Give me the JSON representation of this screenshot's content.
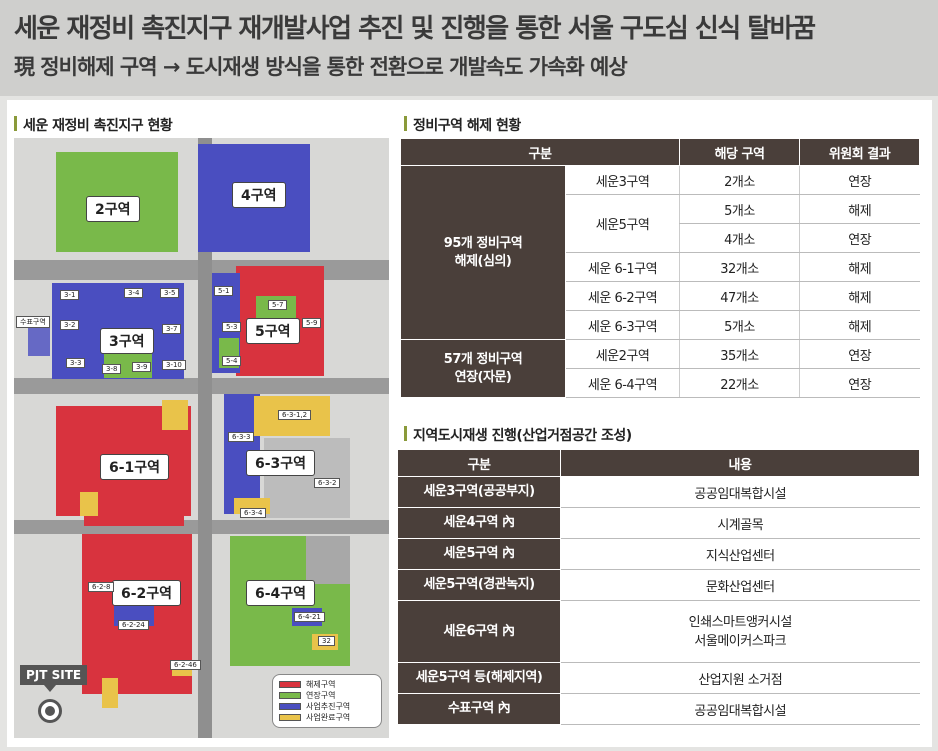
{
  "header": {
    "line1": "세운 재정비 촉진지구 재개발사업 추진 및 진행을 통한 서울 구도심 신식 탈바꿈",
    "line2": "現 정비해제 구역 → 도시재생 방식을 통한 전환으로 개발속도 가속화 예상"
  },
  "map_section": {
    "title": "세운 재정비 촉진지구 현황",
    "zones": [
      "2구역",
      "4구역",
      "3구역",
      "5구역",
      "6-1구역",
      "6-3구역",
      "6-2구역",
      "6-4구역"
    ],
    "sub_labels": [
      "3-1",
      "3-4",
      "3-5",
      "3-2",
      "3-7",
      "3-3",
      "3-8",
      "3-9",
      "3-10",
      "5-1",
      "5-7",
      "5-3",
      "5-9",
      "5-4",
      "6-3-1,2",
      "6-3-3",
      "6-3-2",
      "6-3-4",
      "6-2-8",
      "6-2-24",
      "6-2-46",
      "6-4-21",
      "32",
      "수표구역"
    ],
    "pjt_site": "PJT SITE",
    "legend": [
      {
        "label": "해제구역",
        "color": "#d8333e"
      },
      {
        "label": "연장구역",
        "color": "#79b94a"
      },
      {
        "label": "사업추진구역",
        "color": "#4a4ec0"
      },
      {
        "label": "사업완료구역",
        "color": "#e9c34a"
      }
    ]
  },
  "table1": {
    "title": "정비구역 해제 현황",
    "headers": [
      "구분",
      "해당 구역",
      "위원회 결과"
    ],
    "group1": "95개 정비구역\n해제(심의)",
    "group2": "57개 정비구역\n연장(자문)",
    "rows": [
      [
        "세운3구역",
        "2개소",
        "연장"
      ],
      [
        "세운5구역",
        "5개소",
        "해제"
      ],
      [
        "",
        "4개소",
        "연장"
      ],
      [
        "세운 6-1구역",
        "32개소",
        "해제"
      ],
      [
        "세운 6-2구역",
        "47개소",
        "해제"
      ],
      [
        "세운 6-3구역",
        "5개소",
        "해제"
      ],
      [
        "세운2구역",
        "35개소",
        "연장"
      ],
      [
        "세운 6-4구역",
        "22개소",
        "연장"
      ]
    ]
  },
  "table2": {
    "title": "지역도시재생 진행(산업거점공간 조성)",
    "headers": [
      "구분",
      "내용"
    ],
    "rows": [
      [
        "세운3구역(공공부지)",
        "공공임대복합시설"
      ],
      [
        "세운4구역 內",
        "시계골목"
      ],
      [
        "세운5구역 內",
        "지식산업센터"
      ],
      [
        "세운5구역(경관녹지)",
        "문화산업센터"
      ],
      [
        "세운6구역 內",
        "인쇄스마트앵커시설\n서울메이커스파크"
      ],
      [
        "세운5구역 등(해제지역)",
        "산업지원 소거점"
      ],
      [
        "수표구역 內",
        "공공임대복합시설"
      ]
    ]
  }
}
